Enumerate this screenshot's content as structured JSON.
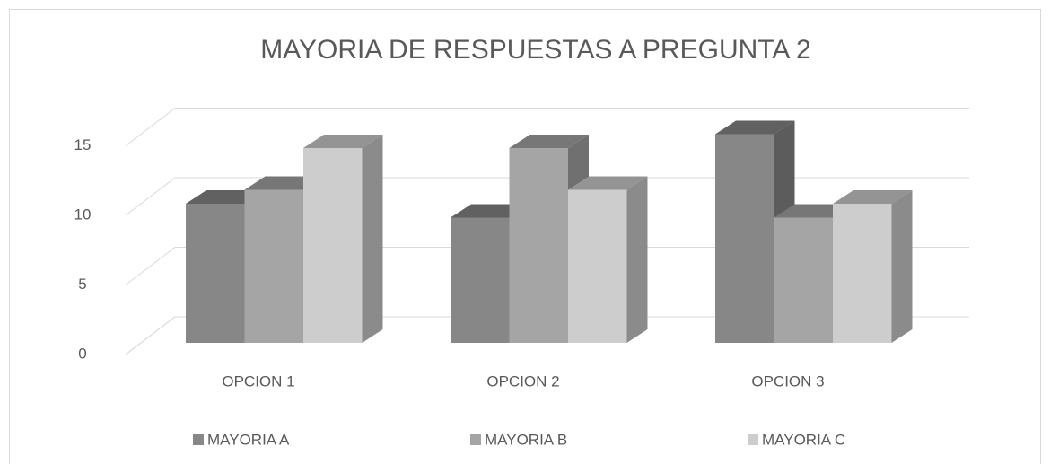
{
  "chart_data": {
    "type": "bar3d",
    "title": "MAYORIA DE RESPUESTAS A PREGUNTA 2",
    "categories": [
      "OPCION 1",
      "OPCION 2",
      "OPCION 3"
    ],
    "series": [
      {
        "name": "MAYORIA A",
        "color": "#878787",
        "values": [
          10,
          9,
          15
        ]
      },
      {
        "name": "MAYORIA B",
        "color": "#a5a5a5",
        "values": [
          11,
          14,
          9
        ]
      },
      {
        "name": "MAYORIA C",
        "color": "#cdcdcd",
        "values": [
          14,
          11,
          10
        ]
      }
    ],
    "ylim": [
      0,
      15
    ],
    "yticks": [
      0,
      5,
      10,
      15
    ],
    "grid": true,
    "legend": "bottom"
  }
}
